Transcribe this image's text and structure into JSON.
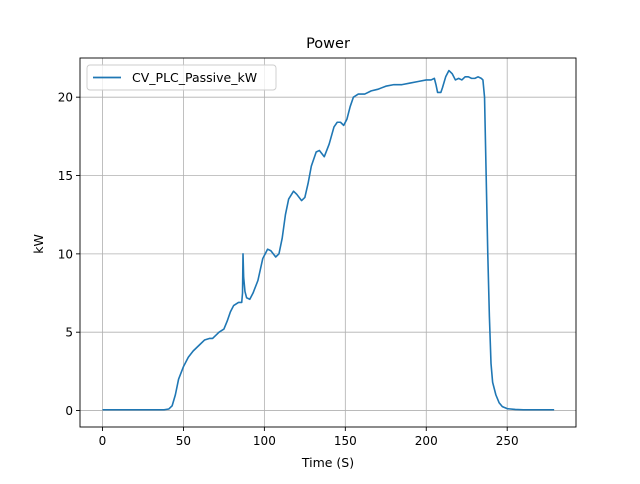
{
  "chart_data": {
    "type": "line",
    "title": "Power",
    "xlabel": "Time (S)",
    "ylabel": "kW",
    "xlim": [
      -13.9,
      292.5
    ],
    "ylim": [
      -1.05,
      22.5
    ],
    "x_ticks": [
      0,
      50,
      100,
      150,
      200,
      250
    ],
    "y_ticks": [
      0,
      5,
      10,
      15,
      20
    ],
    "grid": true,
    "legend_position": "top-left",
    "series": [
      {
        "name": "CV_PLC_Passive_kW",
        "color": "#1f77b4",
        "points": [
          [
            0,
            0.05
          ],
          [
            10,
            0.05
          ],
          [
            20,
            0.05
          ],
          [
            30,
            0.05
          ],
          [
            38,
            0.05
          ],
          [
            41,
            0.1
          ],
          [
            43,
            0.3
          ],
          [
            45,
            1.0
          ],
          [
            47,
            2.0
          ],
          [
            50,
            2.8
          ],
          [
            53,
            3.4
          ],
          [
            56,
            3.8
          ],
          [
            60,
            4.2
          ],
          [
            63,
            4.5
          ],
          [
            66,
            4.6
          ],
          [
            68,
            4.6
          ],
          [
            70,
            4.8
          ],
          [
            72,
            5.0
          ],
          [
            75,
            5.2
          ],
          [
            77,
            5.7
          ],
          [
            79,
            6.3
          ],
          [
            81,
            6.7
          ],
          [
            84,
            6.9
          ],
          [
            86,
            6.9
          ],
          [
            86.5,
            7.5
          ],
          [
            86.8,
            10.0
          ],
          [
            87.2,
            8.5
          ],
          [
            88,
            7.6
          ],
          [
            89,
            7.2
          ],
          [
            91,
            7.1
          ],
          [
            93,
            7.5
          ],
          [
            96,
            8.3
          ],
          [
            99,
            9.7
          ],
          [
            102,
            10.3
          ],
          [
            104,
            10.2
          ],
          [
            107,
            9.8
          ],
          [
            109,
            10.0
          ],
          [
            111,
            11.0
          ],
          [
            113,
            12.5
          ],
          [
            115,
            13.5
          ],
          [
            118,
            14.0
          ],
          [
            120,
            13.8
          ],
          [
            123,
            13.4
          ],
          [
            125,
            13.6
          ],
          [
            127,
            14.5
          ],
          [
            129,
            15.6
          ],
          [
            132,
            16.5
          ],
          [
            134,
            16.6
          ],
          [
            137,
            16.2
          ],
          [
            140,
            17.0
          ],
          [
            143,
            18.1
          ],
          [
            145,
            18.4
          ],
          [
            147,
            18.4
          ],
          [
            149,
            18.2
          ],
          [
            151,
            18.6
          ],
          [
            153,
            19.4
          ],
          [
            155,
            20.0
          ],
          [
            158,
            20.2
          ],
          [
            162,
            20.2
          ],
          [
            166,
            20.4
          ],
          [
            170,
            20.5
          ],
          [
            175,
            20.7
          ],
          [
            180,
            20.8
          ],
          [
            185,
            20.8
          ],
          [
            190,
            20.9
          ],
          [
            195,
            21.0
          ],
          [
            200,
            21.1
          ],
          [
            203,
            21.1
          ],
          [
            205,
            21.2
          ],
          [
            206,
            20.8
          ],
          [
            207,
            20.3
          ],
          [
            209,
            20.3
          ],
          [
            210,
            20.6
          ],
          [
            212,
            21.3
          ],
          [
            214,
            21.7
          ],
          [
            216,
            21.5
          ],
          [
            218,
            21.1
          ],
          [
            220,
            21.2
          ],
          [
            222,
            21.1
          ],
          [
            224,
            21.3
          ],
          [
            226,
            21.3
          ],
          [
            228,
            21.2
          ],
          [
            230,
            21.2
          ],
          [
            232,
            21.3
          ],
          [
            234,
            21.2
          ],
          [
            235,
            21.1
          ],
          [
            236,
            20.0
          ],
          [
            237,
            15.0
          ],
          [
            238,
            10.0
          ],
          [
            239,
            6.0
          ],
          [
            240,
            3.0
          ],
          [
            241,
            1.8
          ],
          [
            243,
            1.0
          ],
          [
            245,
            0.5
          ],
          [
            247,
            0.25
          ],
          [
            250,
            0.12
          ],
          [
            255,
            0.07
          ],
          [
            260,
            0.05
          ],
          [
            270,
            0.05
          ],
          [
            279,
            0.05
          ]
        ]
      }
    ]
  }
}
